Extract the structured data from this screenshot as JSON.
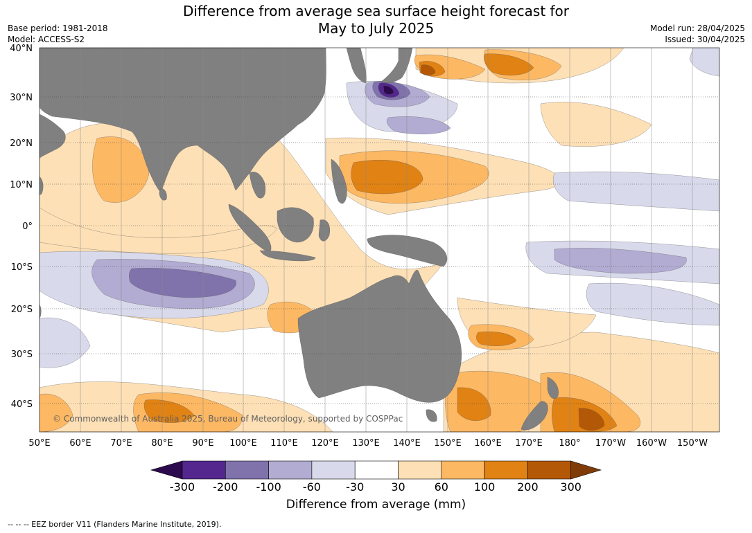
{
  "header": {
    "title_line1": "Difference from average sea surface height forecast for",
    "title_line2": "May to July 2025",
    "base_period": "Base period: 1981-2018",
    "model": "Model: ACCESS-S2",
    "model_run": "Model run: 28/04/2025",
    "issued": "Issued: 30/04/2025"
  },
  "map": {
    "lat_labels": [
      "40°N",
      "30°N",
      "20°N",
      "10°N",
      "0°",
      "10°S",
      "20°S",
      "30°S",
      "40°S"
    ],
    "lon_labels": [
      "50°E",
      "60°E",
      "70°E",
      "80°E",
      "90°E",
      "100°E",
      "110°E",
      "120°E",
      "130°E",
      "140°E",
      "150°E",
      "160°E",
      "170°E",
      "180°",
      "170°W",
      "160°W",
      "150°W"
    ],
    "copyright": "© Commonwealth of Australia 2025, Bureau of Meteorology, supported by COSPPac",
    "colors": {
      "land": "#808080",
      "n300": "#2d0a4e",
      "n200": "#54278f",
      "n100": "#8073ac",
      "n60": "#b2abd2",
      "n30": "#d8daeb",
      "p30": "#fee0b6",
      "p60": "#fdb863",
      "p100": "#e08214",
      "p200": "#b35806",
      "p300": "#7f3b08"
    }
  },
  "colorbar": {
    "labels": [
      "-300",
      "-200",
      "-100",
      "-60",
      "-30",
      "30",
      "60",
      "100",
      "200",
      "300"
    ],
    "colors": [
      "#54278f",
      "#8073ac",
      "#b2abd2",
      "#d8daeb",
      "#ffffff",
      "#fee0b6",
      "#fdb863",
      "#e08214",
      "#b35806"
    ],
    "low_color": "#2d0a4e",
    "high_color": "#7f3b08",
    "title": "Difference from average (mm)"
  },
  "footer": "--  --  -- EEZ border V11 (Flanders Marine Institute, 2019)."
}
